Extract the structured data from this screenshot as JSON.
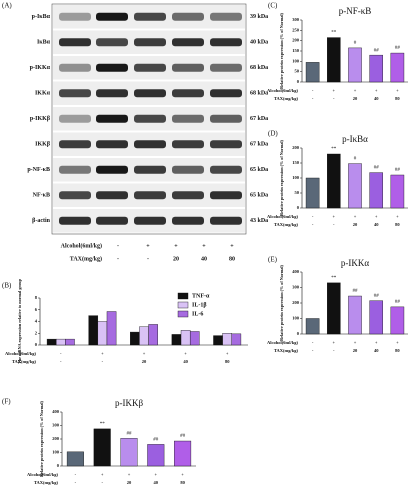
{
  "blot": {
    "panel": "(A)",
    "rows": [
      {
        "label": "p-IκBα",
        "kda": "39 kDa"
      },
      {
        "label": "IκBα",
        "kda": "40 kDa"
      },
      {
        "label": "p-IKKα",
        "kda": "68 kDa"
      },
      {
        "label": "IKKα",
        "kda": "68 kDa"
      },
      {
        "label": "p-IKKβ",
        "kda": "67 kDa"
      },
      {
        "label": "IKKβ",
        "kda": "67 kDa"
      },
      {
        "label": "p-NF-κB",
        "kda": "65 kDa"
      },
      {
        "label": "NF-κB",
        "kda": "65 kDa"
      },
      {
        "label": "β-actin",
        "kda": "43 kDa"
      }
    ],
    "conditions": [
      {
        "label": "Alcohol(6ml/kg)",
        "values": [
          "-",
          "+",
          "+",
          "+",
          "+"
        ]
      },
      {
        "label": "TAX(mg/kg)",
        "values": [
          "-",
          "-",
          "20",
          "40",
          "80"
        ]
      }
    ]
  },
  "chart_data": [
    {
      "type": "grouped-bar",
      "panel": "(B)",
      "y_label": "The mRNA expression relative to normal group",
      "series": [
        {
          "name": "TNF-α",
          "color": "#111111",
          "values": [
            1,
            5,
            2.2,
            1.8,
            1.6
          ]
        },
        {
          "name": "IL-1β",
          "color": "#d9c2f5",
          "values": [
            1,
            4,
            3.1,
            2.5,
            2
          ]
        },
        {
          "name": "IL-6",
          "color": "#a66be0",
          "values": [
            1,
            5.7,
            3.5,
            2.3,
            1.9
          ]
        }
      ],
      "ylim": [
        0,
        8
      ],
      "yticks": [
        0,
        2,
        4,
        6,
        8
      ],
      "conditions": [
        {
          "label": "Alcohol(6ml/kg)",
          "values": [
            "-",
            "+",
            "+",
            "+",
            "+"
          ]
        },
        {
          "label": "TAX(mg/kg)",
          "values": [
            "-",
            "-",
            "20",
            "40",
            "80"
          ]
        }
      ]
    },
    {
      "type": "bar",
      "panel": "(C)",
      "title": "p-NF-κB",
      "y_label": "Relative protein expression (% of Normal)",
      "values": [
        95,
        215,
        165,
        130,
        140
      ],
      "colors": [
        "#5a6878",
        "#111111",
        "#b98ded",
        "#9b5fe0",
        "#b05ee8"
      ],
      "sig": [
        null,
        "**",
        "#",
        "##",
        "##"
      ],
      "ylim": [
        0,
        300
      ],
      "yticks": [
        0,
        50,
        100,
        150,
        200,
        250,
        300
      ],
      "conditions": [
        {
          "label": "Alcohol(6ml/kg)",
          "values": [
            "-",
            "+",
            "+",
            "+",
            "+"
          ]
        },
        {
          "label": "TAX(mg/kg)",
          "values": [
            "-",
            "-",
            "20",
            "40",
            "80"
          ]
        }
      ]
    },
    {
      "type": "bar",
      "panel": "(D)",
      "title": "p-IκBα",
      "y_label": "Relative protein expression (% of Normal)",
      "values": [
        100,
        180,
        148,
        118,
        110
      ],
      "colors": [
        "#5a6878",
        "#111111",
        "#b98ded",
        "#9b5fe0",
        "#b05ee8"
      ],
      "sig": [
        null,
        "**",
        "#",
        "##",
        "##"
      ],
      "ylim": [
        0,
        200
      ],
      "yticks": [
        0,
        50,
        100,
        150,
        200
      ],
      "conditions": [
        {
          "label": "Alcohol(6ml/kg)",
          "values": [
            "-",
            "+",
            "+",
            "+",
            "+"
          ]
        },
        {
          "label": "TAX(mg/kg)",
          "values": [
            "-",
            "-",
            "20",
            "40",
            "80"
          ]
        }
      ]
    },
    {
      "type": "bar",
      "panel": "(E)",
      "title": "p-IKKα",
      "y_label": "Relative protein expression (% of Normal)",
      "values": [
        100,
        330,
        245,
        215,
        175
      ],
      "colors": [
        "#5a6878",
        "#111111",
        "#b98ded",
        "#9b5fe0",
        "#b05ee8"
      ],
      "sig": [
        null,
        "**",
        "##",
        "##",
        "##"
      ],
      "ylim": [
        0,
        400
      ],
      "yticks": [
        0,
        100,
        200,
        300,
        400
      ],
      "conditions": [
        {
          "label": "Alcohol(6ml/kg)",
          "values": [
            "-",
            "+",
            "+",
            "+",
            "+"
          ]
        },
        {
          "label": "TAX(mg/kg)",
          "values": [
            "-",
            "-",
            "20",
            "40",
            "80"
          ]
        }
      ]
    },
    {
      "type": "bar",
      "panel": "(F)",
      "title": "p-IKKβ",
      "y_label": "Relative protein expression (% of Normal)",
      "values": [
        105,
        275,
        205,
        160,
        185
      ],
      "colors": [
        "#5a6878",
        "#111111",
        "#b98ded",
        "#9b5fe0",
        "#b05ee8"
      ],
      "sig": [
        null,
        "**",
        "##",
        "##",
        "##"
      ],
      "ylim": [
        0,
        400
      ],
      "yticks": [
        0,
        100,
        200,
        300,
        400
      ],
      "conditions": [
        {
          "label": "Alcohol(6ml/kg)",
          "values": [
            "-",
            "+",
            "+",
            "+",
            "+"
          ]
        },
        {
          "label": "TAX(mg/kg)",
          "values": [
            "-",
            "-",
            "20",
            "40",
            "80"
          ]
        }
      ]
    }
  ]
}
